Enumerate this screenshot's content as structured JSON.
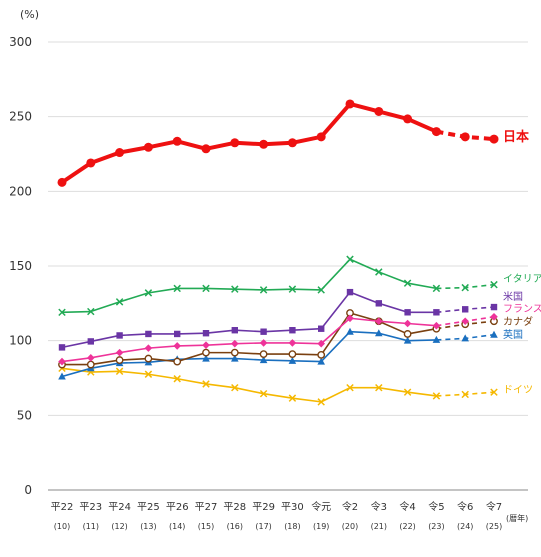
{
  "chart_data": {
    "type": "line",
    "y_unit": "(%)",
    "x_unit": "(暦年)",
    "ylim": [
      0,
      300
    ],
    "yticks": [
      0,
      50,
      100,
      150,
      200,
      250,
      300
    ],
    "grid": true,
    "categories": [
      "平22",
      "平23",
      "平24",
      "平25",
      "平26",
      "平27",
      "平28",
      "平29",
      "平30",
      "令元",
      "令2",
      "令3",
      "令4",
      "令5",
      "令6",
      "令7"
    ],
    "sub_categories": [
      "(10)",
      "(11)",
      "(12)",
      "(13)",
      "(14)",
      "(15)",
      "(16)",
      "(17)",
      "(18)",
      "(19)",
      "(20)",
      "(21)",
      "(22)",
      "(23)",
      "(24)",
      "(25)"
    ],
    "projection_from_index": 13,
    "series": [
      {
        "name": "日本",
        "color": "#ee1111",
        "marker": "circle-filled",
        "bold": true,
        "values": [
          206,
          219,
          226,
          229.5,
          233.5,
          228.5,
          232.5,
          231.5,
          232.5,
          236.5,
          258.5,
          253.5,
          248.5,
          240,
          236.5,
          235
        ]
      },
      {
        "name": "イタリア",
        "color": "#22aa55",
        "marker": "x",
        "values": [
          119,
          119.5,
          126,
          132,
          135,
          135,
          134.5,
          134,
          134.5,
          134,
          154.5,
          146,
          138.5,
          135,
          135.5,
          137.5
        ]
      },
      {
        "name": "米国",
        "color": "#6a35a5",
        "marker": "square",
        "values": [
          95.5,
          99.5,
          103.5,
          104.5,
          104.5,
          105,
          107,
          106,
          107,
          108,
          132.5,
          125,
          119,
          119,
          121,
          122.5
        ]
      },
      {
        "name": "フランス",
        "color": "#ee3399",
        "marker": "diamond",
        "values": [
          86,
          88.5,
          92,
          95,
          96.5,
          97,
          98,
          98.5,
          98.5,
          98,
          115,
          113,
          111.5,
          110,
          113,
          116
        ]
      },
      {
        "name": "カナダ",
        "color": "#7a4010",
        "marker": "circle-open",
        "values": [
          84,
          84,
          87,
          88,
          86,
          92,
          92,
          91,
          91,
          90.5,
          118.5,
          113,
          104.5,
          108,
          111,
          113
        ]
      },
      {
        "name": "英国",
        "color": "#1a6fbf",
        "marker": "triangle",
        "values": [
          76,
          81.5,
          85,
          85.5,
          87.5,
          88,
          88,
          87,
          86.5,
          86,
          106,
          105,
          100,
          100.5,
          101.5,
          104
        ]
      },
      {
        "name": "ドイツ",
        "color": "#f5b800",
        "marker": "x",
        "values": [
          81.5,
          79,
          79.5,
          77.5,
          74.5,
          71,
          68.5,
          64.5,
          61.5,
          59,
          68.5,
          68.5,
          65.5,
          63,
          64,
          65.5
        ]
      }
    ]
  }
}
